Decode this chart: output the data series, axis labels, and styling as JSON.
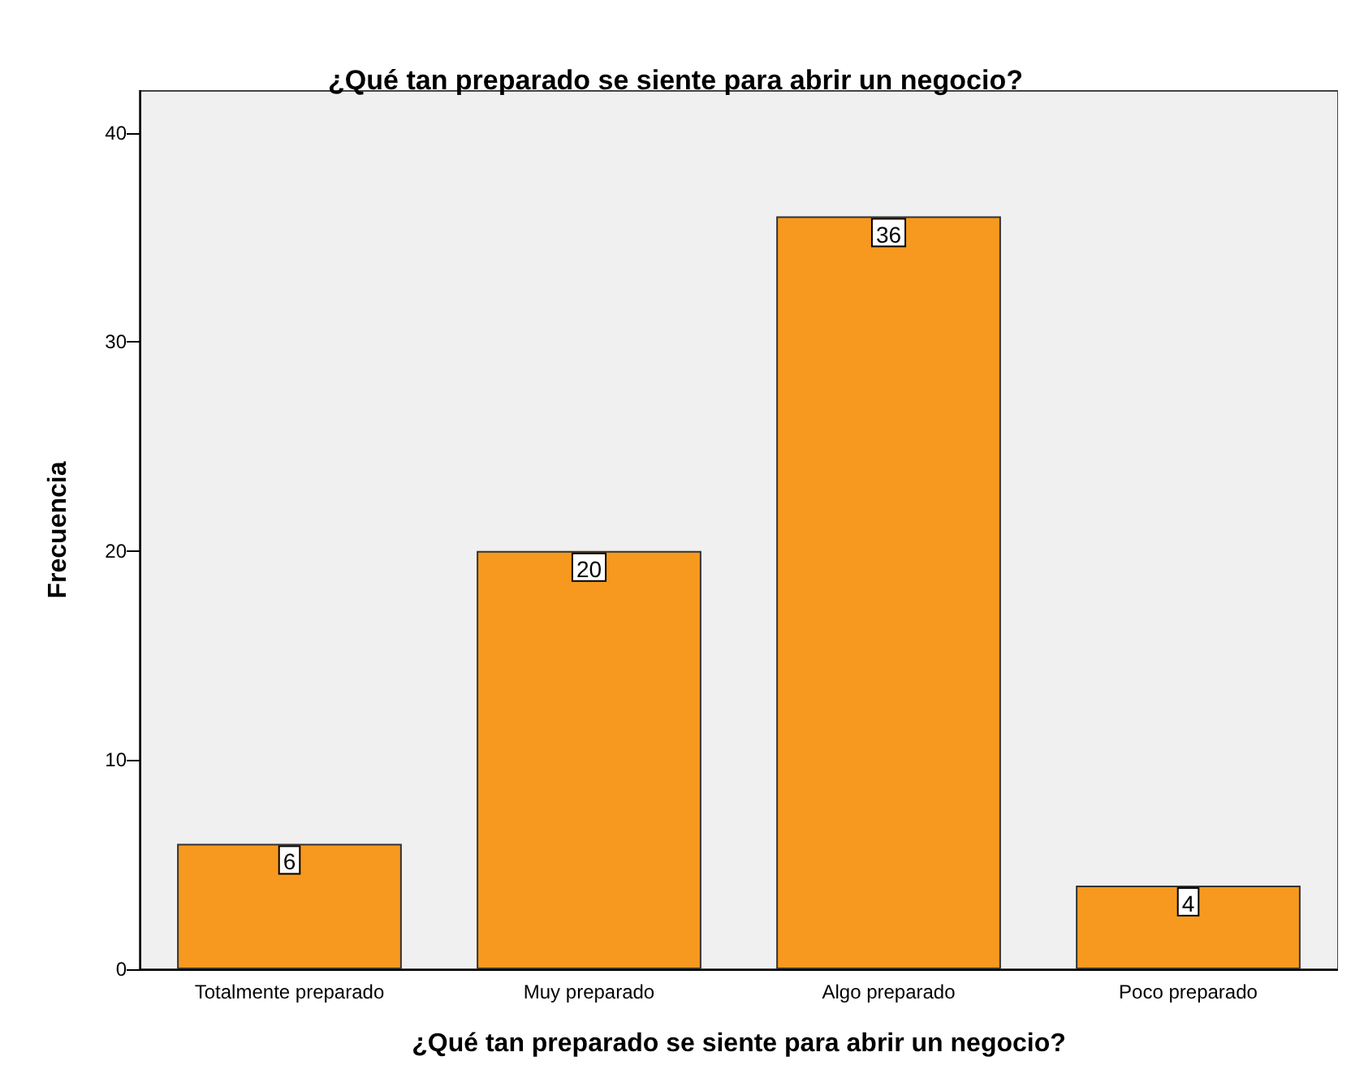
{
  "chart_data": {
    "type": "bar",
    "title": "¿Qué tan preparado se siente para abrir un negocio?",
    "xlabel": "¿Qué tan preparado se siente para abrir un negocio?",
    "ylabel": "Frecuencia",
    "categories": [
      "Totalmente preparado",
      "Muy preparado",
      "Algo preparado",
      "Poco preparado"
    ],
    "values": [
      6,
      20,
      36,
      4
    ],
    "color": "#f7991f",
    "ylim": [
      0,
      42
    ],
    "yticks": [
      0,
      10,
      20,
      30,
      40
    ],
    "grid": false,
    "data_labels": true
  }
}
